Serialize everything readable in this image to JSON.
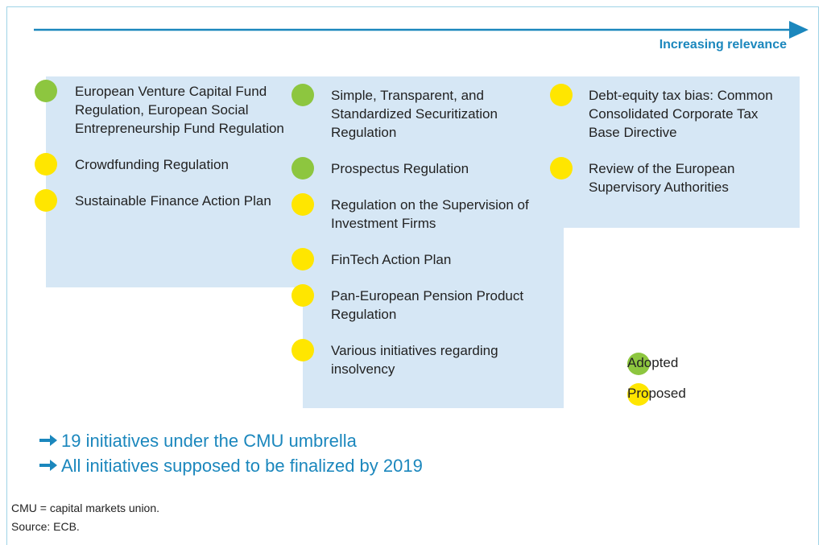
{
  "header": {
    "label": "Increasing relevance"
  },
  "columns": [
    {
      "items": [
        {
          "label": "European Venture Capital Fund Regulation, European Social Entrepreneurship Fund Regulation",
          "color": "#8dc63f"
        },
        {
          "label": "Crowdfunding Regulation",
          "color": "#ffe600"
        },
        {
          "label": "Sustainable Finance Action Plan",
          "color": "#ffe600"
        }
      ]
    },
    {
      "items": [
        {
          "label": "Simple, Transparent, and Standardized Securitization Regulation",
          "color": "#8dc63f"
        },
        {
          "label": "Prospectus Regulation",
          "color": "#8dc63f"
        },
        {
          "label": "Regulation on the Supervision of Investment Firms",
          "color": "#ffe600"
        },
        {
          "label": "FinTech Action Plan",
          "color": "#ffe600"
        },
        {
          "label": "Pan-European Pension Product Regulation",
          "color": "#ffe600"
        },
        {
          "label": "Various initiatives regarding insolvency",
          "color": "#ffe600"
        }
      ]
    },
    {
      "items": [
        {
          "label": "Debt-equity tax bias: Common Consolidated Corporate Tax Base Directive",
          "color": "#ffe600"
        },
        {
          "label": "Review of the European Supervisory Authorities",
          "color": "#ffe600"
        }
      ]
    }
  ],
  "legend": [
    {
      "name": "Adopted",
      "color": "#8dc63f"
    },
    {
      "name": "Proposed",
      "color": "#ffe600"
    }
  ],
  "bullets": [
    "19 initiatives under the CMU umbrella",
    "All initiatives supposed to be finalized by 2019"
  ],
  "notes": [
    "CMU = capital markets union.",
    "Source: ECB."
  ]
}
